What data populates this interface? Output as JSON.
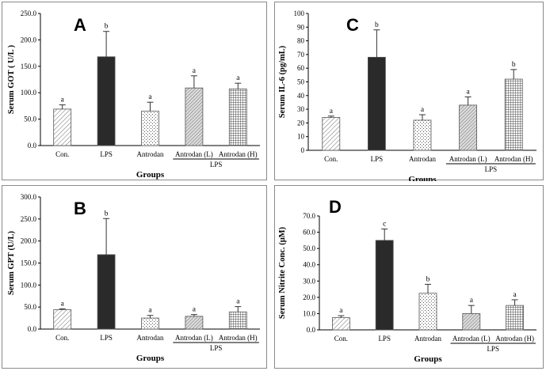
{
  "chart_data": [
    {
      "panel": "A",
      "type": "bar",
      "ylabel": "Serum GOT ( U/L )",
      "xlabel": "Groups",
      "group_label": "LPS",
      "categories": [
        "Con.",
        "LPS",
        "Antrodan",
        "Antrodan (L)",
        "Antrodan (H)"
      ],
      "values": [
        69,
        168,
        65,
        109,
        107
      ],
      "errors": [
        8,
        48,
        17,
        23,
        11
      ],
      "significance": [
        "a",
        "b",
        "a",
        "a",
        "a"
      ],
      "ylim": [
        0,
        250
      ],
      "yticks": [
        "0.0",
        "50.0",
        "100.0",
        "150.0",
        "200.0",
        "250.0"
      ],
      "grid": false
    },
    {
      "panel": "B",
      "type": "bar",
      "ylabel": "Serum GPT (U/L)",
      "xlabel": "Groups",
      "group_label": "LPS",
      "categories": [
        "Con.",
        "LPS",
        "Antrodan",
        "Antrodan (L)",
        "Antrodan (H)"
      ],
      "values": [
        44,
        169,
        25,
        29,
        39
      ],
      "errors": [
        2,
        82,
        6,
        4,
        12
      ],
      "significance": [
        "a",
        "b",
        "a",
        "a",
        "a"
      ],
      "ylim": [
        0,
        300
      ],
      "yticks": [
        "0.0",
        "50.0",
        "100.0",
        "150.0",
        "200.0",
        "250.0",
        "300.0"
      ],
      "grid": false
    },
    {
      "panel": "C",
      "type": "bar",
      "ylabel": "Serum IL-6 (pg/mL)",
      "xlabel": "Groups",
      "group_label": "LPS",
      "categories": [
        "Con.",
        "LPS",
        "Antrodan",
        "Antrodan (L)",
        "Antrodan (H)"
      ],
      "values": [
        24,
        68,
        22,
        33,
        52
      ],
      "errors": [
        1,
        20,
        4,
        6,
        7
      ],
      "significance": [
        "a",
        "b",
        "a",
        "a",
        "b"
      ],
      "ylim": [
        0,
        100
      ],
      "yticks": [
        "0",
        "10",
        "20",
        "30",
        "40",
        "50",
        "60",
        "70",
        "80",
        "90",
        "100"
      ],
      "grid": false
    },
    {
      "panel": "D",
      "type": "bar",
      "ylabel": "Serum Nitrite Conc. (μM)",
      "xlabel": "Groups",
      "group_label": "LPS",
      "categories": [
        "Con.",
        "LPS",
        "Antrodan",
        "Antrodan (L)",
        "Antrodan (H)"
      ],
      "values": [
        7.5,
        55,
        22.5,
        10,
        15
      ],
      "errors": [
        1.2,
        7,
        5.5,
        5,
        3.5
      ],
      "significance": [
        "a",
        "c",
        "b",
        "a",
        "a"
      ],
      "ylim": [
        0,
        70
      ],
      "yticks": [
        "0.0",
        "10.0",
        "20.0",
        "30.0",
        "40.0",
        "50.0",
        "60.0",
        "70.0"
      ],
      "grid": false
    }
  ],
  "bar_patterns": [
    "diag-light",
    "solid-dark",
    "dots",
    "diag-fine",
    "grid"
  ],
  "colors": {
    "axis": "#000000",
    "bar_dark": "#2a2a2a",
    "frame": "#8a8a8a"
  }
}
